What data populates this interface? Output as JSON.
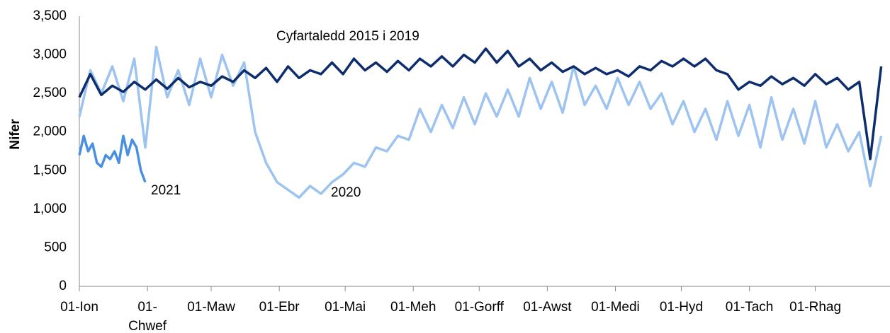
{
  "chart_data": {
    "type": "line",
    "ylabel": "Nifer",
    "xlim": [
      0,
      369
    ],
    "ylim": [
      0,
      3500
    ],
    "xticks": [
      {
        "value": 0,
        "label": "01-Ion"
      },
      {
        "value": 31,
        "label": "01-Chwef"
      },
      {
        "value": 60,
        "label": "01-Maw"
      },
      {
        "value": 91,
        "label": "01-Ebr"
      },
      {
        "value": 121,
        "label": "01-Mai"
      },
      {
        "value": 152,
        "label": "01-Meh"
      },
      {
        "value": 182,
        "label": "01-Gorff"
      },
      {
        "value": 213,
        "label": "01-Awst"
      },
      {
        "value": 244,
        "label": "01-Medi"
      },
      {
        "value": 274,
        "label": "01-Hyd"
      },
      {
        "value": 305,
        "label": "01-Tach"
      },
      {
        "value": 335,
        "label": "01-Rhag"
      }
    ],
    "yticks": [
      0,
      500,
      {
        "value": 1000,
        "label": "1,000"
      },
      {
        "value": 1500,
        "label": "1,500"
      },
      {
        "value": 2000,
        "label": "2,000"
      },
      {
        "value": 2500,
        "label": "2,500"
      },
      {
        "value": 3000,
        "label": "3,000"
      },
      {
        "value": 3500,
        "label": "3,500"
      }
    ],
    "series": [
      {
        "name": "Cyfartaledd 2015 i 2019",
        "color": "#0d2d6c",
        "x": [
          0,
          5,
          10,
          15,
          20,
          25,
          30,
          35,
          40,
          45,
          50,
          55,
          60,
          65,
          70,
          75,
          80,
          85,
          90,
          95,
          100,
          105,
          110,
          115,
          120,
          125,
          130,
          135,
          140,
          145,
          150,
          155,
          160,
          165,
          170,
          175,
          180,
          185,
          190,
          195,
          200,
          205,
          210,
          215,
          220,
          225,
          230,
          235,
          240,
          245,
          250,
          255,
          260,
          265,
          270,
          275,
          280,
          285,
          290,
          295,
          300,
          305,
          310,
          315,
          320,
          325,
          330,
          335,
          340,
          345,
          350,
          355,
          360,
          365
        ],
        "values": [
          2450,
          2750,
          2480,
          2600,
          2520,
          2650,
          2550,
          2680,
          2560,
          2700,
          2580,
          2650,
          2600,
          2720,
          2650,
          2800,
          2700,
          2830,
          2650,
          2850,
          2700,
          2800,
          2750,
          2900,
          2750,
          2950,
          2800,
          2900,
          2780,
          2920,
          2800,
          2950,
          2850,
          2980,
          2850,
          3000,
          2900,
          3080,
          2900,
          3050,
          2850,
          2950,
          2800,
          2900,
          2780,
          2850,
          2750,
          2830,
          2750,
          2800,
          2720,
          2850,
          2800,
          2920,
          2850,
          2950,
          2850,
          2950,
          2800,
          2750,
          2550,
          2650,
          2600,
          2720,
          2620,
          2700,
          2600,
          2750,
          2620,
          2700,
          2550,
          2650,
          1650,
          2850
        ]
      },
      {
        "name": "2020",
        "color": "#9dc3f0",
        "x": [
          0,
          5,
          10,
          15,
          20,
          25,
          30,
          35,
          40,
          45,
          50,
          55,
          60,
          65,
          70,
          75,
          80,
          85,
          90,
          95,
          100,
          105,
          110,
          115,
          120,
          125,
          130,
          135,
          140,
          145,
          150,
          155,
          160,
          165,
          170,
          175,
          180,
          185,
          190,
          195,
          200,
          205,
          210,
          215,
          220,
          225,
          230,
          235,
          240,
          245,
          250,
          255,
          260,
          265,
          270,
          275,
          280,
          285,
          290,
          295,
          300,
          305,
          310,
          315,
          320,
          325,
          330,
          335,
          340,
          345,
          350,
          355,
          360,
          365
        ],
        "values": [
          2200,
          2800,
          2500,
          2850,
          2400,
          2950,
          1800,
          3100,
          2450,
          2800,
          2350,
          2950,
          2450,
          3000,
          2600,
          2900,
          2000,
          1600,
          1350,
          1250,
          1150,
          1300,
          1200,
          1350,
          1450,
          1600,
          1550,
          1800,
          1750,
          1950,
          1900,
          2300,
          2000,
          2350,
          2050,
          2450,
          2100,
          2500,
          2200,
          2550,
          2200,
          2700,
          2300,
          2650,
          2250,
          2850,
          2350,
          2600,
          2300,
          2700,
          2350,
          2650,
          2300,
          2500,
          2100,
          2400,
          2000,
          2300,
          1900,
          2400,
          1950,
          2350,
          1800,
          2450,
          1900,
          2300,
          1850,
          2400,
          1800,
          2100,
          1750,
          2000,
          1300,
          1950
        ]
      },
      {
        "name": "2021",
        "color": "#4a90e0",
        "x": [
          0,
          2,
          4,
          6,
          8,
          10,
          12,
          14,
          16,
          18,
          20,
          22,
          24,
          26,
          28,
          30
        ],
        "values": [
          1700,
          1950,
          1750,
          1850,
          1600,
          1550,
          1700,
          1650,
          1750,
          1600,
          1950,
          1700,
          1900,
          1800,
          1500,
          1350
        ]
      }
    ]
  }
}
